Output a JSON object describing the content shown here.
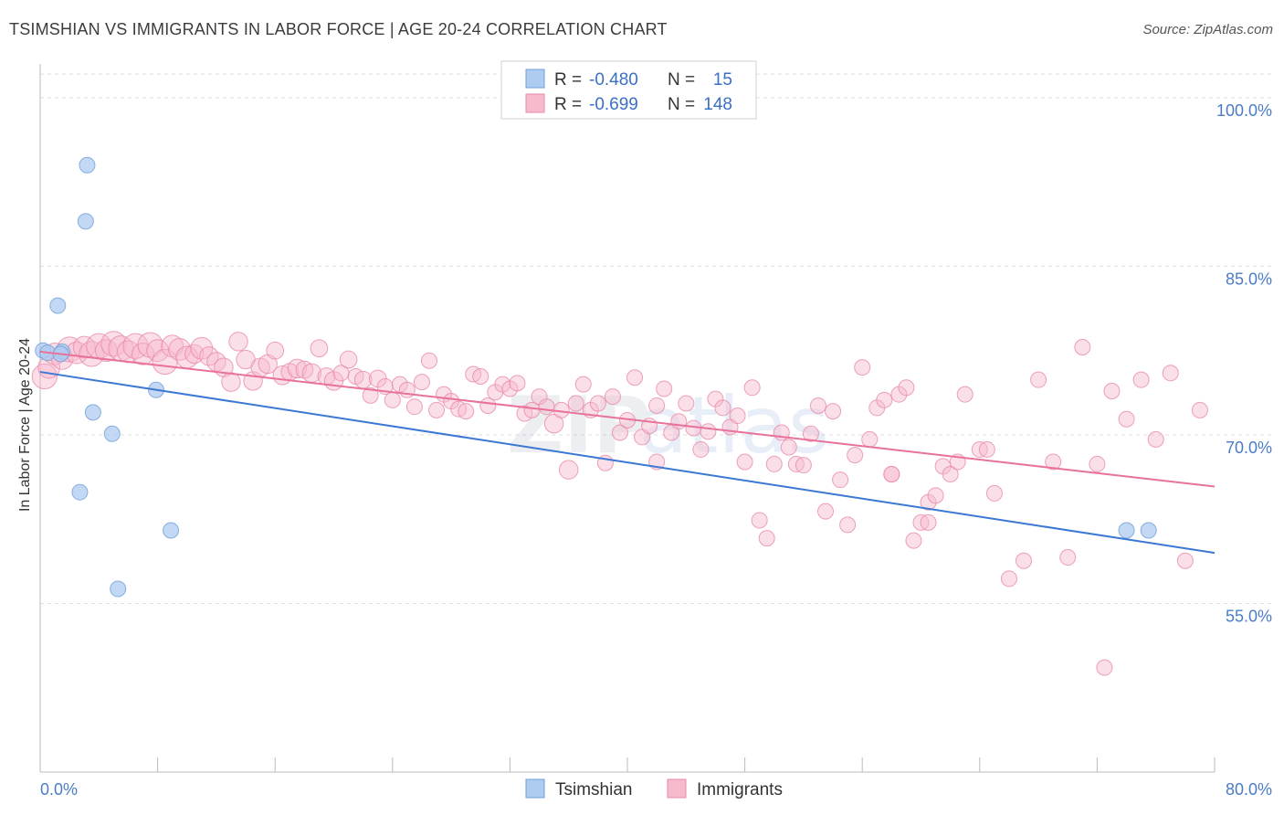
{
  "title": "TSIMSHIAN VS IMMIGRANTS IN LABOR FORCE | AGE 20-24 CORRELATION CHART",
  "source": "Source: ZipAtlas.com",
  "colors": {
    "tsimshian_fill": "#aecbf0",
    "tsimshian_stroke": "#6f9fd8",
    "tsimshian_line": "#3a78d4",
    "immigrants_fill": "#f7b9cc",
    "immigrants_stroke": "#e98aa8",
    "immigrants_line": "#e8729a",
    "tick_text": "#4a7cc7",
    "grid": "#dddddd"
  },
  "chart_data": {
    "type": "scatter",
    "title": "TSIMSHIAN VS IMMIGRANTS IN LABOR FORCE | AGE 20-24 CORRELATION CHART",
    "xlabel": "",
    "ylabel": "In Labor Force | Age 20-24",
    "xlim": [
      0,
      80
    ],
    "ylim": [
      40,
      103
    ],
    "x_tick_labels": [
      "0.0%",
      "80.0%"
    ],
    "y_ticks": [
      55,
      70,
      85,
      100
    ],
    "y_tick_labels": [
      "55.0%",
      "70.0%",
      "85.0%",
      "100.0%"
    ],
    "legend": [
      {
        "name": "Tsimshian",
        "r_label": "R =",
        "r": "-0.480",
        "n_label": "N =",
        "n": "15"
      },
      {
        "name": "Immigrants",
        "r_label": "R =",
        "r": "-0.699",
        "n_label": "N =",
        "n": "148"
      }
    ],
    "series": [
      {
        "name": "Tsimshian",
        "trend": {
          "x": [
            0,
            80
          ],
          "y": [
            75.6,
            59.5
          ]
        },
        "points": [
          [
            0.2,
            77.5,
            10
          ],
          [
            0.5,
            77.3,
            10
          ],
          [
            1.5,
            77.4,
            10
          ],
          [
            1.2,
            81.5,
            10
          ],
          [
            3.2,
            94.0,
            10
          ],
          [
            3.1,
            89.0,
            10
          ],
          [
            3.6,
            72.0,
            10
          ],
          [
            4.9,
            70.1,
            10
          ],
          [
            2.7,
            64.9,
            10
          ],
          [
            7.9,
            74.0,
            10
          ],
          [
            8.9,
            61.5,
            10
          ],
          [
            5.3,
            56.3,
            10
          ],
          [
            74.0,
            61.5,
            10
          ],
          [
            75.5,
            61.5,
            10
          ],
          [
            1.4,
            77.2,
            10
          ]
        ]
      },
      {
        "name": "Immigrants",
        "trend": {
          "x": [
            0,
            80
          ],
          "y": [
            77.4,
            65.4
          ]
        },
        "points": [
          [
            0.3,
            75.2,
            16
          ],
          [
            0.6,
            76.0,
            14
          ],
          [
            1.0,
            77.2,
            14
          ],
          [
            1.5,
            76.8,
            14
          ],
          [
            2.0,
            77.6,
            16
          ],
          [
            2.5,
            77.3,
            14
          ],
          [
            3.0,
            77.8,
            14
          ],
          [
            3.5,
            77.2,
            16
          ],
          [
            4.0,
            77.9,
            16
          ],
          [
            4.5,
            77.5,
            14
          ],
          [
            5.0,
            78.1,
            16
          ],
          [
            5.5,
            77.7,
            16
          ],
          [
            6.0,
            77.4,
            14
          ],
          [
            6.5,
            77.9,
            16
          ],
          [
            7.0,
            77.2,
            14
          ],
          [
            7.5,
            78.0,
            16
          ],
          [
            8.0,
            77.5,
            14
          ],
          [
            8.5,
            76.5,
            16
          ],
          [
            9.0,
            77.9,
            14
          ],
          [
            9.5,
            77.6,
            14
          ],
          [
            10.0,
            76.9,
            14
          ],
          [
            10.5,
            77.2,
            12
          ],
          [
            11.0,
            77.7,
            14
          ],
          [
            11.5,
            77.0,
            12
          ],
          [
            12.0,
            76.5,
            12
          ],
          [
            12.5,
            76.0,
            12
          ],
          [
            13.0,
            74.7,
            12
          ],
          [
            13.5,
            78.3,
            12
          ],
          [
            14.0,
            76.7,
            12
          ],
          [
            14.5,
            74.8,
            12
          ],
          [
            15.0,
            76.0,
            12
          ],
          [
            15.5,
            76.3,
            12
          ],
          [
            16.0,
            77.5,
            11
          ],
          [
            16.5,
            75.3,
            12
          ],
          [
            17.0,
            75.6,
            11
          ],
          [
            17.5,
            75.9,
            12
          ],
          [
            18.0,
            75.8,
            11
          ],
          [
            18.5,
            75.5,
            12
          ],
          [
            19.0,
            77.7,
            11
          ],
          [
            19.5,
            75.2,
            11
          ],
          [
            20.0,
            74.8,
            12
          ],
          [
            20.5,
            75.5,
            10
          ],
          [
            21.0,
            76.7,
            11
          ],
          [
            21.5,
            75.2,
            10
          ],
          [
            22.0,
            74.9,
            11
          ],
          [
            22.5,
            73.5,
            10
          ],
          [
            23.0,
            75.0,
            11
          ],
          [
            23.5,
            74.3,
            10
          ],
          [
            24.0,
            73.1,
            10
          ],
          [
            24.5,
            74.5,
            10
          ],
          [
            25.0,
            74.0,
            10
          ],
          [
            25.5,
            72.5,
            10
          ],
          [
            26.0,
            74.7,
            10
          ],
          [
            26.5,
            76.6,
            10
          ],
          [
            27.0,
            72.2,
            10
          ],
          [
            27.5,
            73.6,
            10
          ],
          [
            28.0,
            73.0,
            10
          ],
          [
            28.5,
            72.3,
            10
          ],
          [
            29.0,
            72.1,
            10
          ],
          [
            29.5,
            75.4,
            10
          ],
          [
            30.0,
            75.2,
            10
          ],
          [
            30.5,
            72.6,
            10
          ],
          [
            31.0,
            73.8,
            10
          ],
          [
            31.5,
            74.5,
            10
          ],
          [
            32.0,
            74.1,
            10
          ],
          [
            32.5,
            74.6,
            10
          ],
          [
            33.0,
            71.9,
            10
          ],
          [
            33.5,
            72.2,
            10
          ],
          [
            34.0,
            73.4,
            10
          ],
          [
            34.5,
            72.5,
            10
          ],
          [
            35.0,
            71.0,
            12
          ],
          [
            35.5,
            72.2,
            10
          ],
          [
            36.0,
            66.9,
            12
          ],
          [
            36.5,
            72.8,
            10
          ],
          [
            37.0,
            74.5,
            10
          ],
          [
            37.5,
            72.2,
            10
          ],
          [
            38.0,
            72.8,
            10
          ],
          [
            38.5,
            67.5,
            10
          ],
          [
            39.0,
            73.4,
            10
          ],
          [
            39.5,
            70.2,
            10
          ],
          [
            40.0,
            71.3,
            10
          ],
          [
            40.5,
            75.1,
            10
          ],
          [
            41.0,
            69.8,
            10
          ],
          [
            41.5,
            70.8,
            10
          ],
          [
            42.0,
            72.6,
            10
          ],
          [
            42.5,
            74.1,
            10
          ],
          [
            43.0,
            70.2,
            10
          ],
          [
            43.5,
            71.2,
            10
          ],
          [
            44.0,
            72.8,
            10
          ],
          [
            44.5,
            70.6,
            10
          ],
          [
            45.0,
            68.7,
            10
          ],
          [
            45.5,
            70.3,
            10
          ],
          [
            46.0,
            73.2,
            10
          ],
          [
            46.5,
            72.4,
            10
          ],
          [
            47.0,
            70.7,
            10
          ],
          [
            47.5,
            71.7,
            10
          ],
          [
            48.0,
            67.6,
            10
          ],
          [
            48.5,
            74.2,
            10
          ],
          [
            49.0,
            62.4,
            10
          ],
          [
            49.5,
            60.8,
            10
          ],
          [
            50.0,
            67.4,
            10
          ],
          [
            50.5,
            70.2,
            10
          ],
          [
            51.0,
            68.9,
            10
          ],
          [
            51.5,
            67.4,
            10
          ],
          [
            52.0,
            67.3,
            10
          ],
          [
            52.5,
            70.1,
            10
          ],
          [
            53.0,
            72.6,
            10
          ],
          [
            53.5,
            63.2,
            10
          ],
          [
            54.0,
            72.1,
            10
          ],
          [
            54.5,
            66.0,
            10
          ],
          [
            55.0,
            62.0,
            10
          ],
          [
            55.5,
            68.2,
            10
          ],
          [
            56.0,
            76.0,
            10
          ],
          [
            56.5,
            69.6,
            10
          ],
          [
            57.0,
            72.4,
            10
          ],
          [
            57.5,
            73.1,
            10
          ],
          [
            58.0,
            66.5,
            10
          ],
          [
            58.5,
            73.6,
            10
          ],
          [
            59.0,
            74.2,
            10
          ],
          [
            59.5,
            60.6,
            10
          ],
          [
            60.0,
            62.2,
            10
          ],
          [
            60.5,
            64.0,
            10
          ],
          [
            61.0,
            64.6,
            10
          ],
          [
            61.5,
            67.2,
            10
          ],
          [
            62.0,
            66.5,
            10
          ],
          [
            62.5,
            67.6,
            10
          ],
          [
            63.0,
            73.6,
            10
          ],
          [
            64.0,
            68.7,
            10
          ],
          [
            65.0,
            64.8,
            10
          ],
          [
            66.0,
            57.2,
            10
          ],
          [
            67.0,
            58.8,
            10
          ],
          [
            68.0,
            74.9,
            10
          ],
          [
            69.0,
            67.6,
            10
          ],
          [
            70.0,
            59.1,
            10
          ],
          [
            71.0,
            77.8,
            10
          ],
          [
            72.0,
            67.4,
            10
          ],
          [
            73.0,
            73.9,
            10
          ],
          [
            74.0,
            71.4,
            10
          ],
          [
            75.0,
            74.9,
            10
          ],
          [
            76.0,
            69.6,
            10
          ],
          [
            77.0,
            75.5,
            10
          ],
          [
            78.0,
            58.8,
            10
          ],
          [
            79.0,
            72.2,
            10
          ],
          [
            72.5,
            49.3,
            10
          ],
          [
            60.5,
            62.2,
            10
          ],
          [
            58.0,
            66.5,
            10
          ],
          [
            64.5,
            68.7,
            10
          ],
          [
            42.0,
            67.6,
            10
          ]
        ]
      }
    ]
  },
  "watermark": {
    "part1": "ZIP",
    "part2": "atlas"
  }
}
